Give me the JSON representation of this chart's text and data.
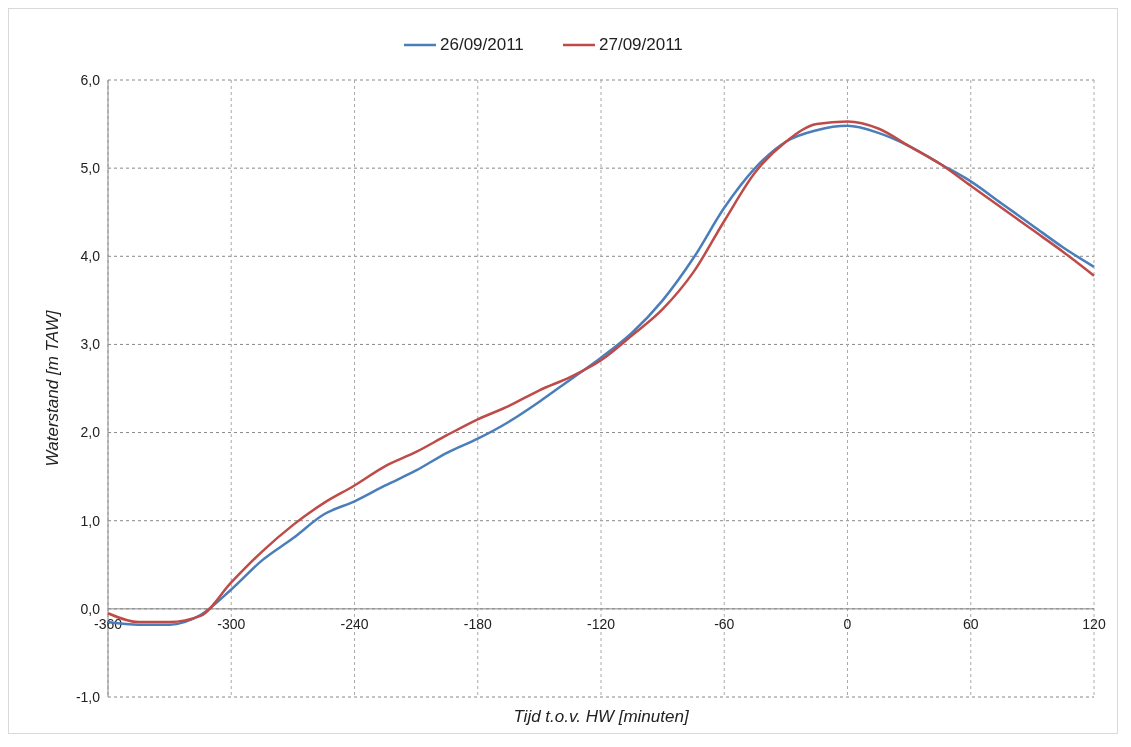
{
  "chart_data": {
    "type": "line",
    "xlabel": "Tijd t.o.v. HW [minuten]",
    "ylabel": "Waterstand [m TAW]",
    "x": [
      -360,
      -345,
      -330,
      -315,
      -300,
      -285,
      -270,
      -255,
      -240,
      -225,
      -210,
      -195,
      -180,
      -165,
      -150,
      -135,
      -120,
      -105,
      -90,
      -75,
      -60,
      -45,
      -30,
      -15,
      0,
      15,
      30,
      45,
      60,
      75,
      90,
      105,
      120
    ],
    "series": [
      {
        "name": "26/09/2011",
        "color": "#4a7ebb",
        "values": [
          -0.15,
          -0.18,
          -0.18,
          -0.07,
          0.22,
          0.55,
          0.8,
          1.07,
          1.22,
          1.4,
          1.57,
          1.77,
          1.93,
          2.12,
          2.35,
          2.6,
          2.85,
          3.13,
          3.5,
          3.98,
          4.55,
          5.0,
          5.3,
          5.43,
          5.48,
          5.4,
          5.25,
          5.05,
          4.85,
          4.6,
          4.35,
          4.1,
          3.88
        ]
      },
      {
        "name": "27/09/2011",
        "color": "#be4b48",
        "values": [
          -0.05,
          -0.15,
          -0.15,
          -0.08,
          0.3,
          0.65,
          0.95,
          1.2,
          1.4,
          1.62,
          1.78,
          1.97,
          2.15,
          2.3,
          2.48,
          2.63,
          2.82,
          3.1,
          3.4,
          3.82,
          4.4,
          4.95,
          5.3,
          5.5,
          5.53,
          5.45,
          5.25,
          5.05,
          4.8,
          4.55,
          4.3,
          4.05,
          3.78
        ]
      }
    ],
    "xlim": [
      -360,
      120
    ],
    "xticks": [
      -360,
      -300,
      -240,
      -180,
      -120,
      -60,
      0,
      60,
      120
    ],
    "ylim": [
      -1,
      6
    ],
    "yticks": [
      {
        "value": -1,
        "label": "-1,0"
      },
      {
        "value": 0,
        "label": "0,0"
      },
      {
        "value": 1,
        "label": "1,0"
      },
      {
        "value": 2,
        "label": "2,0"
      },
      {
        "value": 3,
        "label": "3,0"
      },
      {
        "value": 4,
        "label": "4,0"
      },
      {
        "value": 5,
        "label": "5,0"
      },
      {
        "value": 6,
        "label": "6,0"
      }
    ],
    "grid": true,
    "legend": "top",
    "marker": "none",
    "line_style": "solid"
  }
}
